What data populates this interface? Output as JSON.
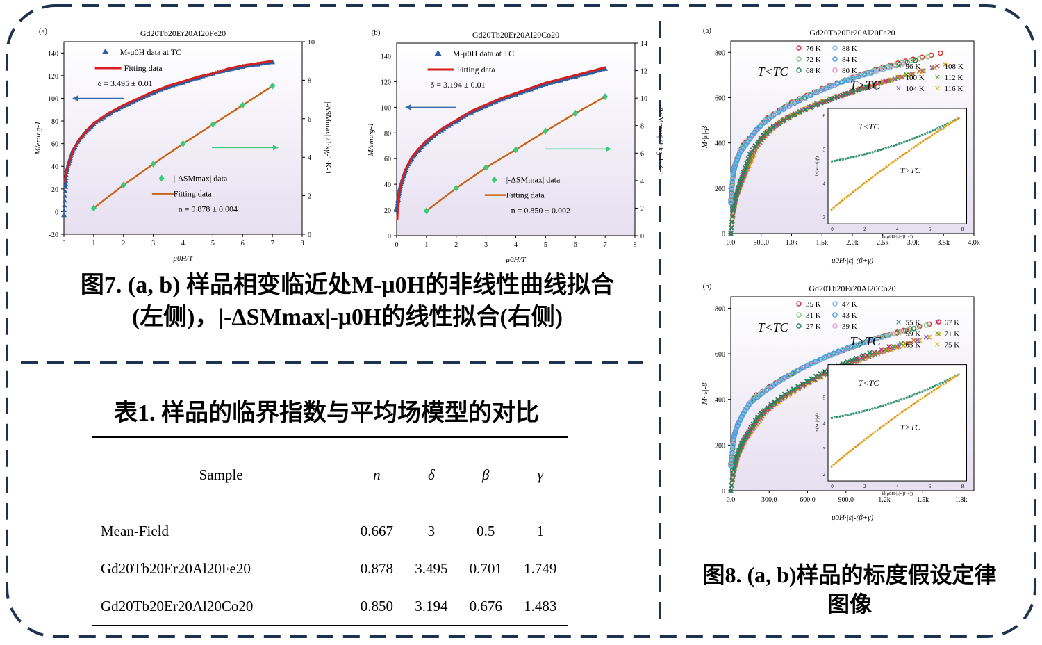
{
  "fig7": {
    "panel_a": {
      "letter": "(a)",
      "title": "Gd20Tb20Er20Al20Fe20",
      "legend_mh": "M-μ0H data at TC",
      "legend_fit1": "Fitting data",
      "delta_text": "δ = 3.495 ± 0.01",
      "legend_ds": "|-ΔSMmax| data",
      "legend_fit2": "Fitting data",
      "n_text": "n = 0.878 ± 0.004",
      "xlabel": "μ0H/T",
      "ylabel_left": "M/emu·g-1",
      "ylabel_right": "|-ΔSMmax| /J·kg-1·K-1"
    },
    "panel_b": {
      "letter": "(b)",
      "title": "Gd20Tb20Er20Al20Co20",
      "legend_mh": "M-μ0H data at TC",
      "legend_fit1": "Fitting data",
      "delta_text": "δ = 3.194 ± 0.01",
      "legend_ds": "|-ΔSMmax| data",
      "legend_fit2": "Fitting data",
      "n_text": "n = 0.850 ± 0.002",
      "xlabel": "μ0H/T",
      "ylabel_left": "M/emu·g-1",
      "ylabel_right": "|-ΔSMmax| /J·kg-1·K-1"
    },
    "caption_line1": "图7. (a, b) 样品相变临近处M-μ0H的非线性曲线拟合",
    "caption_line2": "(左侧)，|-ΔSMmax|-μ0H的线性拟合(右侧)"
  },
  "colors": {
    "frame": "#1f3350",
    "mh_data": "#2f5d9e",
    "fit_red": "#d62020",
    "ds_data": "#3cc97a",
    "fit_orange": "#c8641a",
    "plot_bg_top": "#ffffff",
    "plot_bg_bottom": "#e6dff0"
  },
  "chart_data": [
    {
      "id": "fig7a",
      "type": "scatter",
      "title": "Gd20Tb20Er20Al20Fe20",
      "xlabel": "μ0H/T",
      "ylabel": "M/emu·g-1",
      "ylabel_right": "|-ΔSMmax| /J·kg-1·K-1",
      "xlim": [
        0,
        8
      ],
      "ylim": [
        -20,
        150
      ],
      "ylim_right": [
        0,
        10
      ],
      "x_ticks": [
        0,
        1,
        2,
        3,
        4,
        5,
        6,
        7,
        8
      ],
      "y_ticks": [
        -20,
        0,
        20,
        40,
        60,
        80,
        100,
        120,
        140
      ],
      "y_ticks_right": [
        0,
        2,
        4,
        6,
        8,
        10
      ],
      "series": [
        {
          "name": "M-μ0H data at TC",
          "axis": "left",
          "marker": "triangle",
          "x": [
            0,
            0.05,
            0.1,
            0.2,
            0.3,
            0.5,
            0.75,
            1,
            1.5,
            2,
            2.5,
            3,
            3.5,
            4,
            4.5,
            5,
            5.5,
            6,
            6.5,
            7
          ],
          "y": [
            -3,
            22,
            37,
            46,
            54,
            63,
            71,
            77,
            86,
            93,
            99,
            105,
            110,
            114,
            118,
            122,
            125,
            128,
            130,
            132
          ]
        },
        {
          "name": "Fitting data",
          "axis": "left",
          "line": true,
          "x": [
            0.02,
            0.05,
            0.1,
            0.2,
            0.3,
            0.5,
            0.75,
            1,
            1.5,
            2,
            2.5,
            3,
            3.5,
            4,
            4.5,
            5,
            5.5,
            6,
            6.5,
            7
          ],
          "y": [
            26,
            32,
            37,
            46,
            54,
            63,
            71,
            78,
            87,
            94,
            100,
            106,
            111,
            115,
            119,
            122,
            126,
            129,
            131,
            133
          ]
        },
        {
          "name": "|-ΔSMmax| data",
          "axis": "right",
          "marker": "diamond",
          "x": [
            1,
            2,
            3,
            4,
            5,
            6,
            7
          ],
          "y": [
            1.36,
            2.55,
            3.65,
            4.7,
            5.7,
            6.7,
            7.7
          ]
        },
        {
          "name": "Fitting data",
          "axis": "right",
          "line": true,
          "x": [
            1,
            2,
            3,
            4,
            5,
            6,
            7
          ],
          "y": [
            1.36,
            2.55,
            3.65,
            4.7,
            5.7,
            6.7,
            7.7
          ]
        }
      ]
    },
    {
      "id": "fig7b",
      "type": "scatter",
      "title": "Gd20Tb20Er20Al20Co20",
      "xlabel": "μ0H/T",
      "ylabel": "M/emu·g-1",
      "ylabel_right": "|-ΔSMmax| /J·kg-1·K-1",
      "xlim": [
        0,
        8
      ],
      "ylim": [
        0,
        150
      ],
      "ylim_right": [
        0,
        14
      ],
      "x_ticks": [
        0,
        1,
        2,
        3,
        4,
        5,
        6,
        7,
        8
      ],
      "y_ticks": [
        0,
        20,
        40,
        60,
        80,
        100,
        120,
        140
      ],
      "y_ticks_right": [
        0,
        2,
        4,
        6,
        8,
        10,
        12,
        14
      ],
      "series": [
        {
          "name": "M-μ0H data at TC",
          "axis": "left",
          "marker": "triangle",
          "x": [
            0,
            0.05,
            0.1,
            0.2,
            0.3,
            0.5,
            0.75,
            1,
            1.5,
            2,
            2.5,
            3,
            3.5,
            4,
            4.5,
            5,
            5.5,
            6,
            6.5,
            7
          ],
          "y": [
            20,
            28,
            36,
            44,
            51,
            60,
            67,
            73,
            82,
            89,
            96,
            101,
            106,
            110,
            114,
            118,
            121,
            124,
            127,
            130
          ]
        },
        {
          "name": "Fitting data",
          "axis": "left",
          "line": true,
          "x": [
            0.02,
            0.05,
            0.1,
            0.2,
            0.3,
            0.5,
            0.75,
            1,
            1.5,
            2,
            2.5,
            3,
            3.5,
            4,
            4.5,
            5,
            5.5,
            6,
            6.5,
            7
          ],
          "y": [
            12,
            26,
            36,
            45,
            52,
            61,
            68,
            74,
            83,
            90,
            97,
            102,
            107,
            111,
            115,
            119,
            122,
            125,
            128,
            131
          ]
        },
        {
          "name": "|-ΔSMmax| data",
          "axis": "right",
          "marker": "diamond",
          "x": [
            1,
            2,
            3,
            4,
            5,
            6,
            7
          ],
          "y": [
            1.8,
            3.45,
            4.95,
            6.25,
            7.6,
            8.9,
            10.1
          ]
        },
        {
          "name": "Fitting data",
          "axis": "right",
          "line": true,
          "x": [
            1,
            2,
            3,
            4,
            5,
            6,
            7
          ],
          "y": [
            1.8,
            3.45,
            4.95,
            6.25,
            7.6,
            8.9,
            10.1
          ]
        }
      ]
    },
    {
      "id": "fig8a",
      "type": "scatter",
      "title": "Gd20Tb20Er20Al20Fe20",
      "xlabel": "μ0H·|ε|-(β+γ)",
      "ylabel": "M·|ε|-β",
      "xlim": [
        0,
        4000
      ],
      "ylim": [
        0,
        850
      ],
      "x_ticks": [
        0,
        500,
        1000,
        1500,
        2000,
        2500,
        3000,
        3500,
        4000
      ],
      "x_tick_labels": [
        "0.0",
        "500.0",
        "1.0k",
        "1.5k",
        "2.0k",
        "2.5k",
        "3.0k",
        "3.5k",
        "4.0k"
      ],
      "y_ticks": [
        0,
        200,
        400,
        600,
        800
      ],
      "series": [
        {
          "name": "T<TC",
          "x": [
            0,
            50,
            100,
            200,
            400,
            600,
            1000,
            1500,
            2000,
            2500,
            3000,
            3600
          ],
          "y": [
            150,
            290,
            330,
            390,
            450,
            510,
            580,
            640,
            690,
            735,
            770,
            805
          ]
        },
        {
          "name": "T>TC",
          "x": [
            0,
            50,
            100,
            200,
            300,
            450,
            700,
            1000,
            1500,
            2000,
            2500,
            3000,
            3700
          ],
          "y": [
            0,
            110,
            170,
            240,
            300,
            390,
            470,
            525,
            585,
            630,
            670,
            705,
            760
          ]
        }
      ]
    },
    {
      "id": "fig8b",
      "type": "scatter",
      "title": "Gd20Tb20Er20Al20Co20",
      "xlabel": "μ0H·|ε|-(β+γ)",
      "ylabel": "M·|ε|-β",
      "xlim": [
        0,
        1900
      ],
      "ylim": [
        0,
        850
      ],
      "x_ticks": [
        0,
        300,
        600,
        900,
        1200,
        1500,
        1800
      ],
      "x_tick_labels": [
        "0.0",
        "300.0",
        "600.0",
        "900.0",
        "1.2k",
        "1.5k",
        "1.8k"
      ],
      "y_ticks": [
        0,
        200,
        400,
        600,
        800
      ],
      "series": [
        {
          "name": "T<TC",
          "x": [
            0,
            30,
            60,
            120,
            200,
            400,
            600,
            800,
            1000,
            1200,
            1400,
            1700
          ],
          "y": [
            120,
            250,
            300,
            360,
            420,
            490,
            550,
            600,
            640,
            680,
            710,
            750
          ]
        },
        {
          "name": "T>TC",
          "x": [
            0,
            30,
            60,
            120,
            200,
            300,
            450,
            600,
            800,
            1000,
            1200,
            1400,
            1700
          ],
          "y": [
            0,
            100,
            160,
            230,
            290,
            360,
            420,
            470,
            520,
            570,
            610,
            645,
            700
          ]
        }
      ]
    }
  ],
  "fig8": {
    "panel_a": {
      "letter": "(a)",
      "title": "Gd20Tb20Er20Al20Fe20",
      "below_legend": [
        "76 K",
        "72 K",
        "68 K"
      ],
      "below_legend2": [
        "88 K",
        "84 K",
        "80 K"
      ],
      "above_legend": [
        "96 K",
        "100 K",
        "104 K"
      ],
      "above_legend2": [
        "108 K",
        "112 K",
        "116 K"
      ],
      "label_below": "T<TC",
      "label_above": "T>TC",
      "ylabel": "M·|ε|-β",
      "xlabel": "μ0H·|ε|-(β+γ)",
      "inset_label_below": "T<TC",
      "inset_label_above": "T>TC",
      "inset_xlabel": "ln(μ0H·|ε|-(β+γ))",
      "inset_ylabel": "ln(M·|ε|-β)",
      "inset_x_ticks": [
        "0",
        "2",
        "4",
        "6",
        "8"
      ],
      "inset_y_ticks": [
        "3",
        "4",
        "5",
        "6"
      ]
    },
    "panel_b": {
      "letter": "(b)",
      "title": "Gd20Tb20Er20Al20Co20",
      "below_legend": [
        "35 K",
        "31 K",
        "27 K"
      ],
      "below_legend2": [
        "47 K",
        "43 K",
        "39 K"
      ],
      "above_legend": [
        "55 K",
        "59 K",
        "63 K"
      ],
      "above_legend2": [
        "67 K",
        "71 K",
        "75 K"
      ],
      "label_below": "T<TC",
      "label_above": "T>TC",
      "ylabel": "M·|ε|-β",
      "xlabel": "μ0H·|ε|-(β+γ)",
      "inset_label_below": "T<TC",
      "inset_label_above": "T>TC",
      "inset_xlabel": "ln(μ0H·|ε|-(β+γ))",
      "inset_ylabel": "ln(M·|ε|-β)",
      "inset_x_ticks": [
        "0",
        "2",
        "4",
        "6",
        "8"
      ],
      "inset_y_ticks": [
        "2",
        "3",
        "4",
        "5",
        "6"
      ]
    },
    "caption_line1": "图8. (a, b)样品的标度假设定律",
    "caption_line2": "图像"
  },
  "table": {
    "title_prefix": "表",
    "title_num": "1.",
    "title_text": "样品的临界指数与平均场模型的对比",
    "headers": [
      "Sample",
      "n",
      "δ",
      "β",
      "γ"
    ],
    "rows": [
      [
        "Mean-Field",
        "0.667",
        "3",
        "0.5",
        "1"
      ],
      [
        "Gd20Tb20Er20Al20Fe20",
        "0.878",
        "3.495",
        "0.701",
        "1.749"
      ],
      [
        "Gd20Tb20Er20Al20Co20",
        "0.850",
        "3.194",
        "0.676",
        "1.483"
      ]
    ]
  }
}
